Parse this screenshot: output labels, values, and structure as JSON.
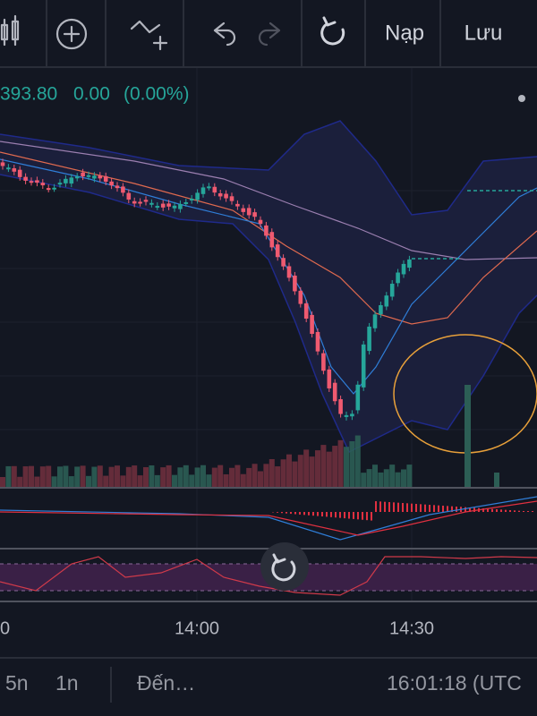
{
  "toolbar": {
    "buttons": [
      "Nạp",
      "Lưu"
    ]
  },
  "legend": {
    "price": "393.80",
    "change": "0.00",
    "percent": "(0.00%)"
  },
  "time_axis": {
    "labels": [
      "0",
      "14:00",
      "14:30"
    ]
  },
  "bottom_bar": {
    "intervals": [
      "5n",
      "1n"
    ],
    "goto": "Đến…",
    "clock": "16:01:18 (UTC"
  }
}
